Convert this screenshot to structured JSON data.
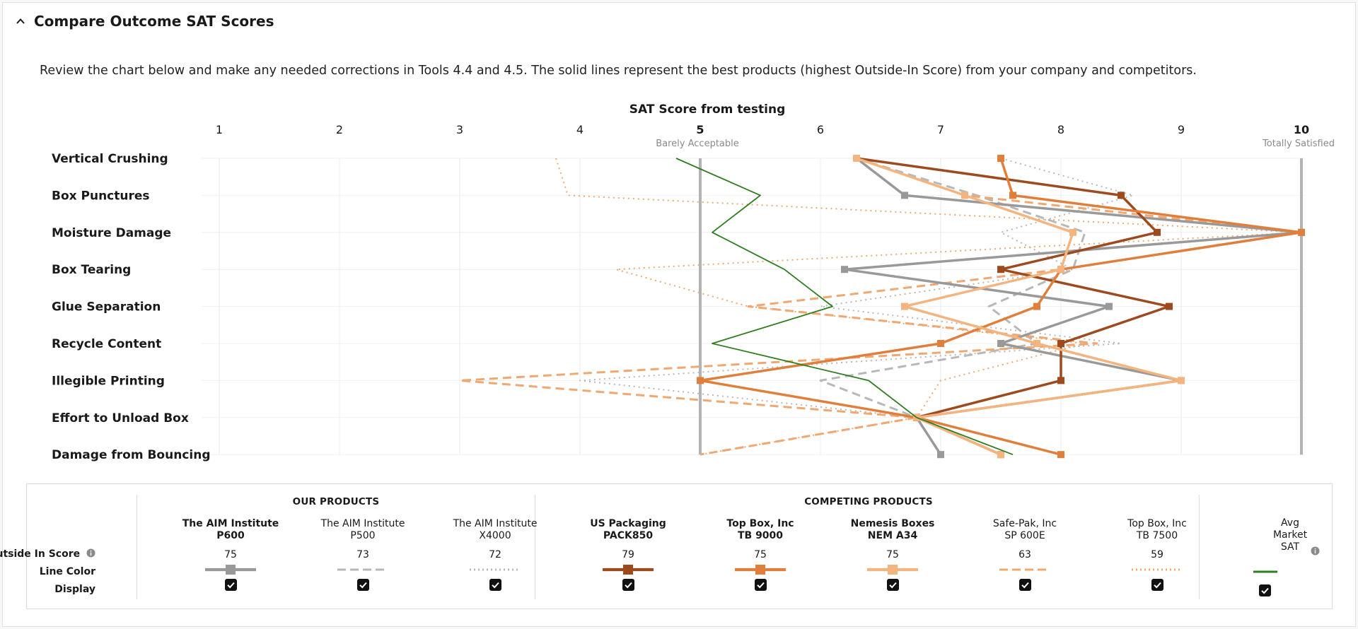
{
  "header": {
    "title": "Compare Outcome SAT Scores"
  },
  "description": "Review the chart below and make any needed corrections in Tools 4.4 and 4.5. The solid lines represent the best products (highest Outside-In Score) from your company and competitors.",
  "chart_data": {
    "type": "line",
    "orientation": "horizontal-values",
    "title": "SAT Score from testing",
    "xlim": [
      1,
      10
    ],
    "x_ticks": [
      1,
      2,
      3,
      4,
      5,
      6,
      7,
      8,
      9,
      10
    ],
    "annotations": [
      {
        "x": 5,
        "text": "Barely Acceptable"
      },
      {
        "x": 10,
        "text": "Totally Satisfied"
      }
    ],
    "categories": [
      "Vertical Crushing",
      "Box Punctures",
      "Moisture Damage",
      "Box Tearing",
      "Glue Separation",
      "Recycle Content",
      "Illegible Printing",
      "Effort to Unload Box",
      "Damage from Bouncing"
    ],
    "series": [
      {
        "name": "The AIM Institute P600",
        "color": "#999999",
        "style": "solid",
        "values": [
          6.3,
          6.7,
          10,
          6.2,
          8.4,
          7.5,
          9.0,
          6.8,
          7.0
        ]
      },
      {
        "name": "The AIM Institute P500",
        "color": "#b8b8b8",
        "style": "dashed",
        "values": [
          6.3,
          7.3,
          8.2,
          8.1,
          7.4,
          7.8,
          6.0,
          6.8,
          7.5
        ]
      },
      {
        "name": "The AIM Institute X4000",
        "color": "#b8b8b8",
        "style": "dotted",
        "values": [
          7.5,
          8.6,
          7.5,
          8.1,
          6.0,
          8.5,
          4.0,
          6.8,
          7.5
        ]
      },
      {
        "name": "US Packaging PACK850",
        "color": "#9c4a1e",
        "style": "solid",
        "values": [
          6.3,
          8.5,
          8.8,
          7.5,
          8.9,
          8.0,
          8.0,
          6.8,
          7.5
        ]
      },
      {
        "name": "Top Box, Inc TB 9000",
        "color": "#e07f3c",
        "style": "solid",
        "values": [
          7.5,
          7.6,
          10,
          8.0,
          7.8,
          7.0,
          5.0,
          6.8,
          8.0
        ]
      },
      {
        "name": "Nemesis Boxes NEM A34",
        "color": "#f4b47f",
        "style": "solid",
        "values": [
          6.3,
          7.2,
          8.1,
          8.0,
          6.7,
          7.8,
          9.0,
          6.8,
          7.5
        ]
      },
      {
        "name": "Safe-Pak, Inc SP 600E",
        "color": "#f0a872",
        "style": "dashed",
        "values": [
          6.3,
          7.2,
          10,
          8.0,
          5.4,
          8.3,
          3.0,
          6.8,
          5.0
        ]
      },
      {
        "name": "Top Box, Inc TB 7500",
        "color": "#f0a872",
        "style": "dotted",
        "values": [
          3.8,
          3.9,
          10,
          4.3,
          5.4,
          8.2,
          7.0,
          6.8,
          5.0
        ]
      },
      {
        "name": "Avg Market SAT",
        "color": "#2e7d1f",
        "style": "solid",
        "values": [
          4.8,
          5.5,
          5.1,
          5.7,
          6.1,
          5.1,
          6.4,
          6.8,
          7.6
        ]
      }
    ]
  },
  "legend": {
    "our_products_label": "OUR PRODUCTS",
    "competing_products_label": "COMPETING PRODUCTS",
    "row_labels": {
      "score": "Outside In Score",
      "line_color": "Line Color",
      "display": "Display"
    },
    "columns": [
      {
        "line1": "The AIM Institute",
        "line2": "P600",
        "score": "75",
        "color": "#999999",
        "style": "solid",
        "bold": true,
        "checked": true
      },
      {
        "line1": "The AIM Institute",
        "line2": "P500",
        "score": "73",
        "color": "#b8b8b8",
        "style": "dashed",
        "bold": false,
        "checked": true
      },
      {
        "line1": "The AIM Institute",
        "line2": "X4000",
        "score": "72",
        "color": "#b8b8b8",
        "style": "dotted",
        "bold": false,
        "checked": true
      },
      {
        "line1": "US Packaging",
        "line2": "PACK850",
        "score": "79",
        "color": "#9c4a1e",
        "style": "solid",
        "bold": true,
        "checked": true
      },
      {
        "line1": "Top Box, Inc",
        "line2": "TB 9000",
        "score": "75",
        "color": "#e07f3c",
        "style": "solid",
        "bold": true,
        "checked": true
      },
      {
        "line1": "Nemesis Boxes",
        "line2": "NEM A34",
        "score": "75",
        "color": "#f4b47f",
        "style": "solid",
        "bold": true,
        "checked": true
      },
      {
        "line1": "Safe-Pak, Inc",
        "line2": "SP 600E",
        "score": "63",
        "color": "#f0a872",
        "style": "dashed",
        "bold": false,
        "checked": true
      },
      {
        "line1": "Top Box, Inc",
        "line2": "TB 7500",
        "score": "59",
        "color": "#f0a872",
        "style": "dotted",
        "bold": false,
        "checked": true
      }
    ],
    "avg": {
      "line1": "Avg",
      "line2": "Market",
      "line3": "SAT",
      "color": "#2e7d1f",
      "checked": true
    }
  },
  "icons": {
    "collapse": "chevron-up-icon",
    "info": "info-icon",
    "checkbox": "checkbox-checked-icon"
  }
}
